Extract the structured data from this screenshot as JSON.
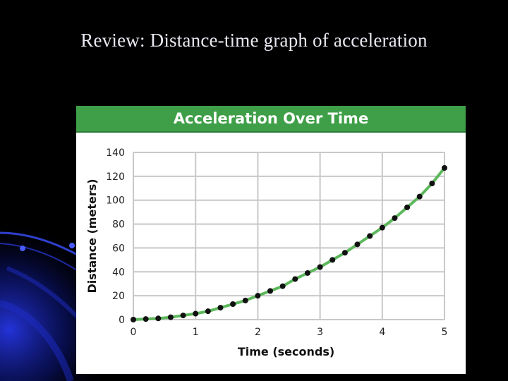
{
  "slide": {
    "title": "Review: Distance-time graph of acceleration"
  },
  "colors": {
    "background": "#000000",
    "header_green": "#3f9f48",
    "curve_green": "#5cb85c",
    "point": "#111111",
    "grid": "#c8c8c8"
  },
  "chart_data": {
    "type": "scatter",
    "title": "Acceleration Over Time",
    "xlabel": "Time (seconds)",
    "ylabel": "Distance (meters)",
    "xlim": [
      0,
      5
    ],
    "ylim": [
      0,
      140
    ],
    "xticks": [
      0,
      1,
      2,
      3,
      4,
      5
    ],
    "yticks": [
      0,
      20,
      40,
      60,
      80,
      100,
      120,
      140
    ],
    "grid": true,
    "series": [
      {
        "x": [
          0,
          0.2,
          0.4,
          0.6,
          0.8,
          1.0,
          1.2,
          1.4,
          1.6,
          1.8,
          2.0,
          2.2,
          2.4,
          2.6,
          2.8,
          3.0,
          3.2,
          3.4,
          3.6,
          3.8,
          4.0,
          4.2,
          4.4,
          4.6,
          4.8,
          5.0
        ],
        "y": [
          0,
          0.5,
          1,
          2,
          3.5,
          5,
          7,
          10,
          13,
          16,
          20,
          24,
          28,
          34,
          39,
          44,
          50,
          56,
          63,
          70,
          77,
          85,
          94,
          103,
          114,
          127
        ]
      }
    ]
  }
}
